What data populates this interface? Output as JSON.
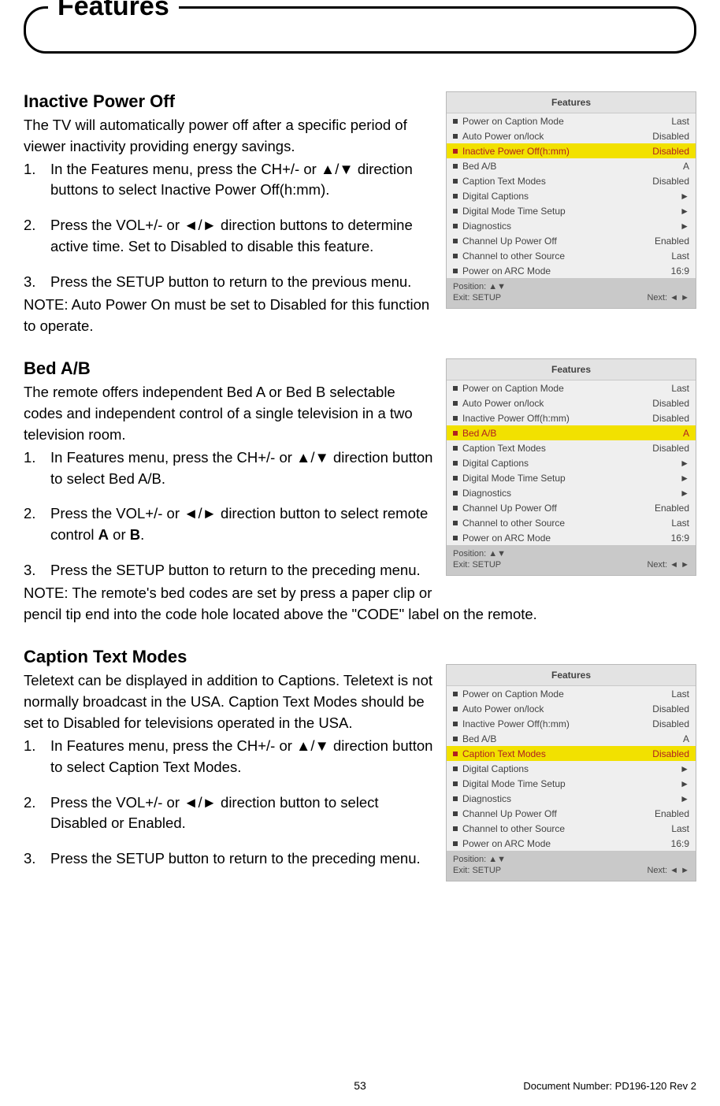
{
  "page": {
    "header_title": "Features",
    "page_number": "53",
    "doc_number": "Document Number: PD196-120 Rev 2"
  },
  "sections": {
    "s1": {
      "title": "Inactive Power Off",
      "intro": "The TV will automatically power off after a specific period of viewer inactivity providing energy savings.",
      "step1": "In the Features menu, press the CH+/- or ▲/▼ direction buttons to select Inactive Power Off(h:mm).",
      "step2": "Press the VOL+/- or ◄/► direction buttons to determine active time. Set to Disabled to disable this feature.",
      "step3": "Press the SETUP button to return to the previous menu.",
      "note": "NOTE: Auto Power On must be set to Disabled for this function to operate."
    },
    "s2": {
      "title": "Bed A/B",
      "intro": "The remote offers independent Bed A or Bed B selectable codes and independent control of a single television in a two television room.",
      "step1": "In Features menu, press the CH+/- or ▲/▼ direction button to select Bed A/B.",
      "step2_a": "Press the VOL+/- or ◄/► direction button to select remote control ",
      "step2_b": "A",
      "step2_c": " or ",
      "step2_d": "B",
      "step2_e": ".",
      "step3": "Press the SETUP button to return to the preceding menu.",
      "note": "NOTE: The remote's bed codes are set by press a paper clip or pencil tip end into the code hole located above the \"CODE\" label on the remote."
    },
    "s3": {
      "title": "Caption Text Modes",
      "intro": "Teletext can be displayed in addition to Captions. Teletext is not normally broadcast in the USA. Caption Text Modes should be set to Disabled for televisions operated in the USA.",
      "step1": "In Features menu, press the CH+/- or ▲/▼ direction button to select Caption Text Modes.",
      "step2": "Press the VOL+/- or ◄/► direction button to select Disabled or Enabled.",
      "step3": "Press the SETUP button to return to the preceding menu."
    }
  },
  "tv_menu": {
    "title": "Features",
    "rows": [
      {
        "label": "Power on Caption Mode",
        "value": "Last"
      },
      {
        "label": "Auto Power on/lock",
        "value": "Disabled"
      },
      {
        "label": "Inactive Power Off(h:mm)",
        "value": "Disabled"
      },
      {
        "label": "Bed A/B",
        "value": "A"
      },
      {
        "label": "Caption Text Modes",
        "value": "Disabled"
      },
      {
        "label": "Digital Captions",
        "value": "►"
      },
      {
        "label": "Digital Mode Time Setup",
        "value": "►"
      },
      {
        "label": "Diagnostics",
        "value": "►"
      },
      {
        "label": "Channel Up Power Off",
        "value": "Enabled"
      },
      {
        "label": "Channel to other Source",
        "value": "Last"
      },
      {
        "label": "Power on ARC Mode",
        "value": "16:9"
      }
    ],
    "foot_pos": "Position: ▲▼",
    "foot_exit": "Exit: SETUP",
    "foot_next": "Next: ◄ ►",
    "highlight_indices": {
      "s1": 2,
      "s2": 3,
      "s3": 4
    }
  }
}
